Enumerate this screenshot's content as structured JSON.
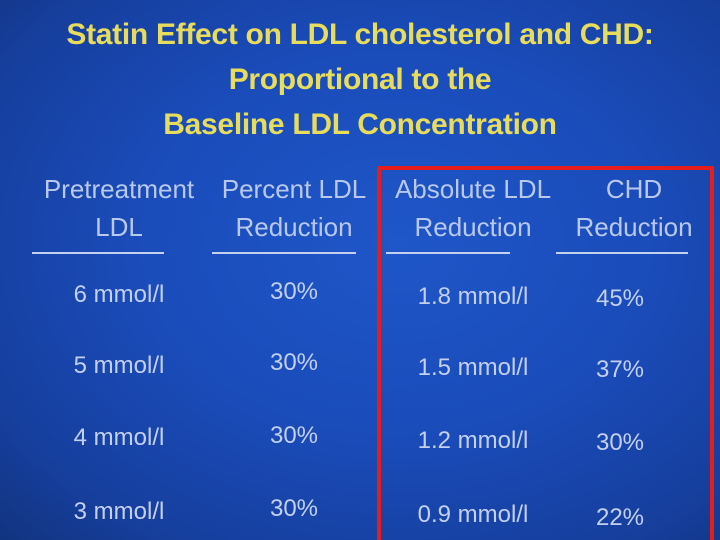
{
  "title": {
    "line1": "Statin Effect on LDL cholesterol and CHD:",
    "line2": "Proportional to the",
    "line3": "Baseline LDL Concentration"
  },
  "table": {
    "headers": [
      {
        "line1": "Pretreatment",
        "line2": "LDL"
      },
      {
        "line1": "Percent LDL",
        "line2": "Reduction"
      },
      {
        "line1": "Absolute LDL",
        "line2": "Reduction"
      },
      {
        "line1": "CHD",
        "line2": "Reduction"
      }
    ],
    "rows": [
      [
        "6 mmol/l",
        "30%",
        "1.8 mmol/l",
        "45%"
      ],
      [
        "5 mmol/l",
        "30%",
        "1.5 mmol/l",
        "37%"
      ],
      [
        "4 mmol/l",
        "30%",
        "1.2 mmol/l",
        "30%"
      ],
      [
        "3 mmol/l",
        "30%",
        "0.9 mmol/l",
        "22%"
      ]
    ]
  },
  "highlight": {
    "color": "#e61d1d",
    "covers_columns": [
      2,
      3
    ]
  }
}
